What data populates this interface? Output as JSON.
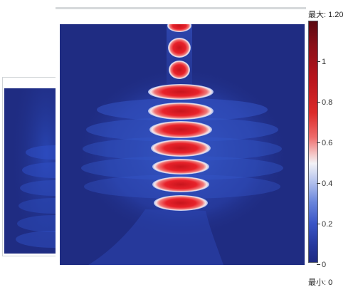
{
  "colorbar": {
    "max_label": "最大: 1.20",
    "min_label": "最小: 0",
    "ticks": [
      "1",
      "0.8",
      "0.6",
      "0.4",
      "0.2",
      "0"
    ],
    "colors": {
      "high": "#5a0912",
      "upper": "#dc2a2a",
      "mid": "#f2f2f6",
      "lower": "#3a55c6",
      "low": "#1e2a82"
    }
  },
  "field_map": {
    "background_color": "#1f2c82",
    "spot_color": "#e8222a"
  }
}
